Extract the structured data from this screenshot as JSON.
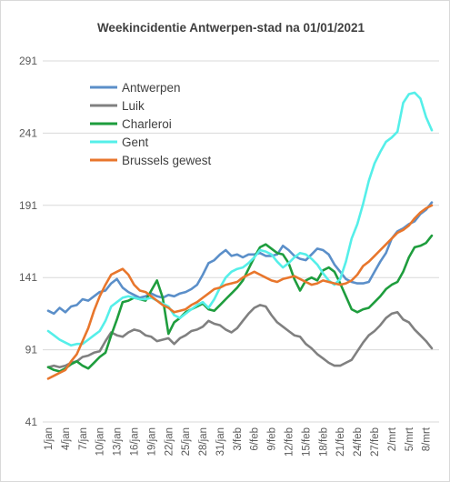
{
  "chart_data": {
    "type": "line",
    "title": "Weekincidentie  Antwerpen-stad na 01/01/2021",
    "xlabel": "",
    "ylabel": "",
    "ylim": [
      41,
      291
    ],
    "yticks": [
      41,
      91,
      141,
      191,
      241,
      291
    ],
    "grid": true,
    "legend_position": "top-left",
    "x_tick_labels": [
      "1/jan",
      "4/jan",
      "7/jan",
      "10/jan",
      "13/jan",
      "16/jan",
      "19/jan",
      "22/jan",
      "25/jan",
      "28/jan",
      "31/jan",
      "3/feb",
      "6/feb",
      "9/feb",
      "12/feb",
      "15/feb",
      "18/feb",
      "21/feb",
      "24/feb",
      "27/feb",
      "2/mrt",
      "5/mrt",
      "8/mrt"
    ],
    "day_count": 68,
    "series": [
      {
        "name": "Antwerpen",
        "color": "#5b8fc9",
        "values": [
          118,
          116,
          120,
          117,
          121,
          122,
          126,
          125,
          128,
          131,
          132,
          137,
          140,
          134,
          131,
          129,
          127,
          128,
          130,
          128,
          127,
          129,
          128,
          130,
          131,
          133,
          136,
          143,
          151,
          153,
          157,
          160,
          156,
          157,
          155,
          157,
          157,
          158,
          156,
          156,
          157,
          163,
          160,
          156,
          154,
          153,
          157,
          161,
          160,
          157,
          150,
          145,
          140,
          138,
          137,
          137,
          138,
          145,
          152,
          158,
          168,
          173,
          175,
          178,
          180,
          185,
          188,
          193
        ]
      },
      {
        "name": "Luik",
        "color": "#808080",
        "values": [
          79,
          80,
          79,
          80,
          82,
          83,
          86,
          87,
          89,
          90,
          97,
          103,
          101,
          100,
          103,
          105,
          104,
          101,
          100,
          97,
          98,
          99,
          95,
          99,
          101,
          104,
          105,
          107,
          111,
          109,
          108,
          105,
          103,
          106,
          111,
          116,
          120,
          122,
          121,
          115,
          110,
          107,
          104,
          101,
          100,
          95,
          92,
          88,
          85,
          82,
          80,
          80,
          82,
          84,
          90,
          96,
          101,
          104,
          108,
          113,
          116,
          117,
          112,
          110,
          105,
          101,
          97,
          92
        ]
      },
      {
        "name": "Charleroi",
        "color": "#1e9d3d",
        "values": [
          79,
          77,
          76,
          78,
          81,
          83,
          80,
          78,
          82,
          86,
          89,
          101,
          112,
          124,
          125,
          127,
          126,
          125,
          132,
          139,
          127,
          102,
          110,
          113,
          117,
          119,
          121,
          123,
          119,
          118,
          122,
          126,
          130,
          134,
          139,
          147,
          155,
          162,
          164,
          161,
          158,
          157,
          151,
          140,
          132,
          139,
          141,
          139,
          146,
          148,
          145,
          137,
          128,
          119,
          117,
          119,
          120,
          124,
          128,
          133,
          136,
          138,
          145,
          155,
          162,
          163,
          165,
          170
        ]
      },
      {
        "name": "Gent",
        "color": "#55efe9",
        "values": [
          104,
          101,
          98,
          96,
          94,
          95,
          95,
          98,
          101,
          104,
          111,
          121,
          124,
          127,
          128,
          127,
          126,
          126,
          127,
          125,
          123,
          121,
          115,
          113,
          116,
          119,
          122,
          124,
          120,
          126,
          134,
          141,
          145,
          147,
          148,
          151,
          155,
          160,
          159,
          157,
          152,
          148,
          151,
          155,
          158,
          157,
          154,
          150,
          144,
          139,
          136,
          140,
          152,
          168,
          178,
          192,
          208,
          220,
          228,
          235,
          238,
          242,
          262,
          268,
          269,
          265,
          252,
          243
        ]
      },
      {
        "name": "Brussels gewest",
        "color": "#e8762c",
        "values": [
          71,
          73,
          75,
          77,
          83,
          88,
          97,
          106,
          118,
          128,
          136,
          143,
          145,
          147,
          143,
          136,
          132,
          131,
          128,
          125,
          122,
          120,
          117,
          118,
          119,
          122,
          124,
          127,
          130,
          133,
          134,
          136,
          137,
          138,
          141,
          143,
          145,
          143,
          141,
          139,
          138,
          140,
          141,
          142,
          140,
          138,
          136,
          137,
          139,
          138,
          137,
          136,
          137,
          139,
          143,
          149,
          152,
          156,
          160,
          164,
          168,
          172,
          174,
          177,
          182,
          186,
          189,
          191
        ]
      }
    ]
  }
}
